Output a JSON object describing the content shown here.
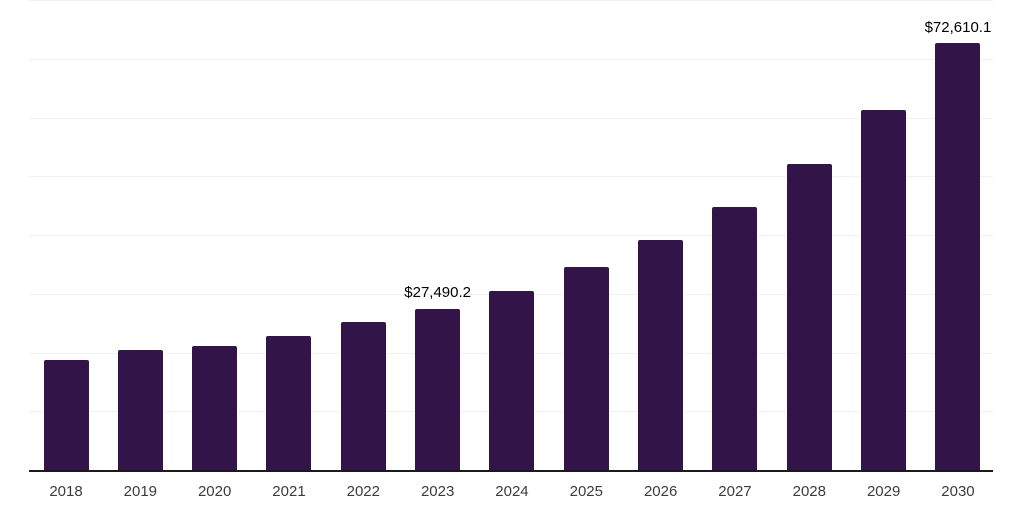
{
  "chart_data": {
    "type": "bar",
    "title": "",
    "xlabel": "",
    "ylabel": "",
    "categories": [
      "2018",
      "2019",
      "2020",
      "2021",
      "2022",
      "2023",
      "2024",
      "2025",
      "2026",
      "2027",
      "2028",
      "2029",
      "2030"
    ],
    "values": [
      18650,
      20350,
      21030,
      22740,
      25120,
      27490.2,
      30480,
      34490,
      39090,
      44820,
      52150,
      61280,
      72610.1
    ],
    "value_labels": {
      "2023": "$27,490.2",
      "2030": "$72,610.1"
    },
    "value_prefix": "$",
    "ylim": [
      0,
      80000
    ],
    "grid": true,
    "grid_interval": 10000,
    "legend": false,
    "bar_color": "#331448",
    "gridline_color": "#f1f1f1",
    "axis_color": "#1a1a1a",
    "value_label_color": "#000000",
    "tick_label_color": "#3c3c3c"
  }
}
